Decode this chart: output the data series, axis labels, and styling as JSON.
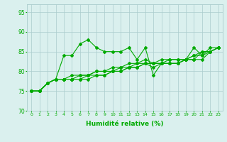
{
  "title": "",
  "xlabel": "Humidité relative (%)",
  "ylabel": "",
  "xlim": [
    -0.5,
    23.5
  ],
  "ylim": [
    70,
    97
  ],
  "yticks": [
    70,
    75,
    80,
    85,
    90,
    95
  ],
  "xticks": [
    0,
    1,
    2,
    3,
    4,
    5,
    6,
    7,
    8,
    9,
    10,
    11,
    12,
    13,
    14,
    15,
    16,
    17,
    18,
    19,
    20,
    21,
    22,
    23
  ],
  "bg_color": "#daf0ee",
  "grid_color": "#aacccc",
  "line_color": "#00aa00",
  "figsize": [
    3.2,
    2.0
  ],
  "dpi": 100,
  "series": [
    [
      75,
      75,
      77,
      78,
      84,
      84,
      87,
      88,
      86,
      85,
      85,
      85,
      86,
      83,
      86,
      79,
      82,
      82,
      82,
      83,
      86,
      84,
      86,
      86
    ],
    [
      75,
      75,
      77,
      78,
      78,
      78,
      78,
      78,
      79,
      79,
      80,
      80,
      81,
      81,
      82,
      82,
      82,
      82,
      82,
      83,
      84,
      84,
      85,
      86
    ],
    [
      75,
      75,
      77,
      78,
      78,
      78,
      78,
      79,
      79,
      79,
      80,
      80,
      81,
      81,
      82,
      81,
      82,
      82,
      82,
      83,
      83,
      83,
      85,
      86
    ],
    [
      75,
      75,
      77,
      78,
      78,
      78,
      79,
      79,
      80,
      80,
      80,
      81,
      81,
      82,
      82,
      82,
      82,
      83,
      83,
      83,
      83,
      85,
      85,
      86
    ],
    [
      75,
      75,
      77,
      78,
      78,
      79,
      79,
      79,
      80,
      80,
      81,
      81,
      82,
      82,
      83,
      82,
      83,
      83,
      83,
      83,
      84,
      85,
      85,
      86
    ]
  ]
}
